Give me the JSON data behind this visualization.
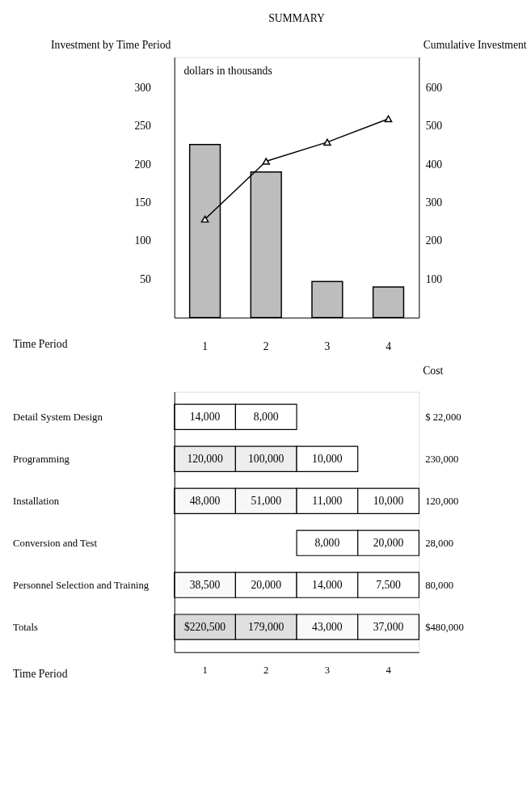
{
  "chart_data": [
    {
      "type": "bar",
      "title": "SUMMARY",
      "xlabel": "Time Period",
      "ylabel": "Investment by Time Period",
      "y2label": "Cumulative Investment",
      "annotations": [
        "dollars in thousands"
      ],
      "categories": [
        "1",
        "2",
        "3",
        "4"
      ],
      "series": [
        {
          "type": "bar",
          "color": "#bdbdbd",
          "values": [
            226,
            190,
            47,
            40
          ]
        },
        {
          "type": "line",
          "axis": "y2",
          "color": "#000000",
          "marker": "triangle",
          "values": [
            257,
            408,
            458,
            519
          ]
        }
      ],
      "ylim": [
        0,
        340
      ],
      "yticks": [
        50,
        100,
        150,
        200,
        250,
        300
      ],
      "y2lim": [
        0,
        680
      ],
      "y2ticks": [
        100,
        200,
        300,
        400,
        500,
        600
      ],
      "grid": false
    },
    {
      "type": "heatmap",
      "xlabel": "Time Period",
      "y2label": "Cost",
      "data_labels": true,
      "categories": [
        "1",
        "2",
        "3",
        "4"
      ],
      "y_categories": [
        "Detail System Design",
        "Programming",
        "Installation",
        "Conversion and Test",
        "Personnel Selection and Training",
        "Totals"
      ],
      "y2_categories": [
        "$ 22,000",
        "230,000",
        "120,000",
        "28,000",
        "80,000",
        "$480,000"
      ],
      "cells": [
        [
          14000,
          8000,
          null,
          null
        ],
        [
          120000,
          100000,
          10000,
          null
        ],
        [
          48000,
          51000,
          11000,
          10000
        ],
        [
          null,
          null,
          8000,
          20000
        ],
        [
          38500,
          20000,
          14000,
          7500
        ],
        [
          220500,
          179000,
          43000,
          37000
        ]
      ],
      "cell_labels": [
        [
          "14,000",
          "8,000",
          null,
          null
        ],
        [
          "120,000",
          "100,000",
          "10,000",
          null
        ],
        [
          "48,000",
          "51,000",
          "11,000",
          "10,000"
        ],
        [
          null,
          null,
          "8,000",
          "20,000"
        ],
        [
          "38,500",
          "20,000",
          "14,000",
          "7,500"
        ],
        [
          "$220,500",
          "179,000",
          "43,000",
          "37,000"
        ]
      ]
    }
  ]
}
